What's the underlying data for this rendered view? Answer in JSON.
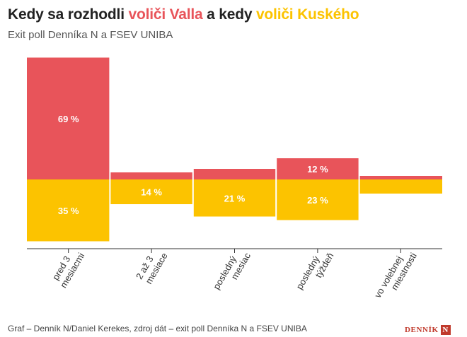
{
  "title": {
    "part1": "Kedy sa rozhodli",
    "part2": "voliči Valla",
    "part3": "a kedy",
    "part4": "voliči Kuského"
  },
  "subtitle": "Exit poll Denníka N a FSEV UNIBA",
  "footer": "Graf – Denník N/Daniel Kerekes, zdroj dát – exit poll Denníka N a FSEV UNIBA",
  "logo": {
    "text": "DENNÍK",
    "mark": "N"
  },
  "colors": {
    "valla": "#e8545a",
    "kusy": "#fcc300",
    "axis": "#333333",
    "label": "#ffffff"
  },
  "chart_data": {
    "type": "bar",
    "categories": [
      "pred 3 mesiacmi",
      "2 až 3 mesiace",
      "posledný mesiac",
      "posledný týždeň",
      "vo volebnej miestnosti"
    ],
    "category_labels": [
      [
        "pred 3",
        "mesiacmi"
      ],
      [
        "2 až 3",
        "mesiace"
      ],
      [
        "posledný",
        "mesiac"
      ],
      [
        "posledný",
        "týždeň"
      ],
      [
        "vo volebnej",
        "miestnosti"
      ]
    ],
    "series": [
      {
        "name": "voliči Valla",
        "color": "#e8545a",
        "direction": "up",
        "values": [
          69,
          4,
          6,
          12,
          2
        ]
      },
      {
        "name": "voliči Kuského",
        "color": "#fcc300",
        "direction": "down",
        "values": [
          35,
          14,
          21,
          23,
          8
        ]
      }
    ],
    "labels_up": [
      "69 %",
      "",
      "",
      "12 %",
      ""
    ],
    "labels_down": [
      "35 %",
      "14 %",
      "21 %",
      "23 %",
      ""
    ],
    "grid": false
  }
}
